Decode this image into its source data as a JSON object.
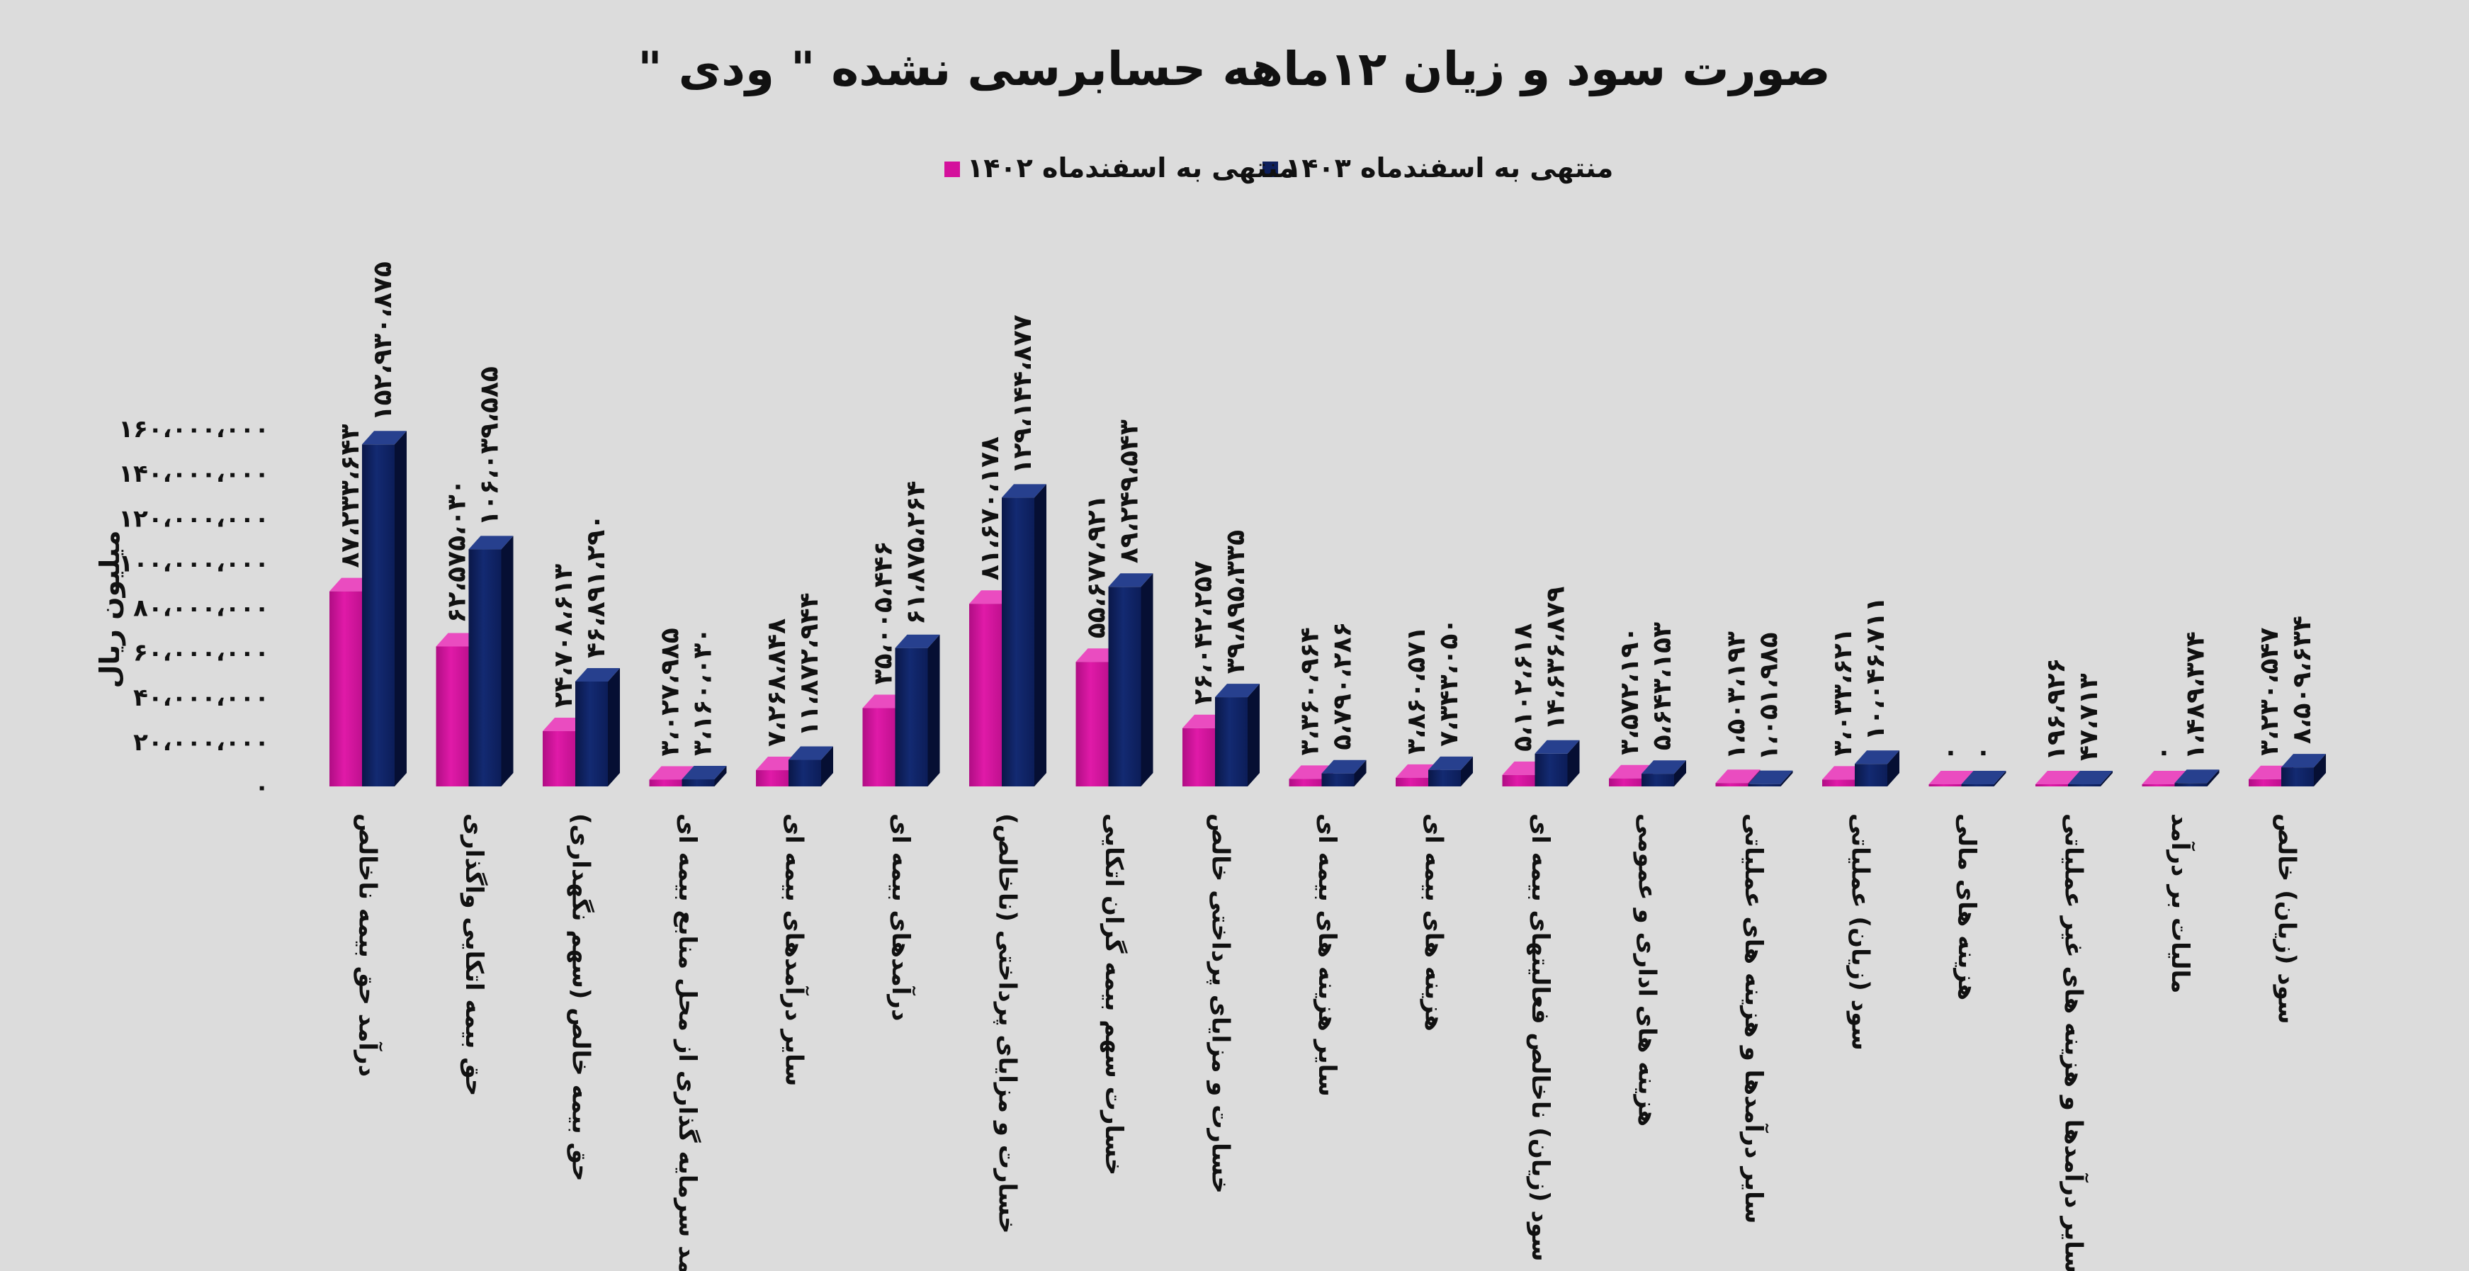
{
  "chart_data": {
    "type": "bar",
    "title": "صورت سود و زیان ۱۲ماهه حسابرسی نشده \" ودی \"",
    "ylabel": "میلیون ریال",
    "ylim": [
      0,
      160000000
    ],
    "yticks": [
      0,
      20000000,
      40000000,
      60000000,
      80000000,
      100000000,
      120000000,
      140000000,
      160000000
    ],
    "ytick_labels": [
      "۰",
      "۲۰،۰۰۰،۰۰۰",
      "۴۰،۰۰۰،۰۰۰",
      "۶۰،۰۰۰،۰۰۰",
      "۸۰،۰۰۰،۰۰۰",
      "۱۰۰،۰۰۰،۰۰۰",
      "۱۲۰،۰۰۰،۰۰۰",
      "۱۴۰،۰۰۰،۰۰۰",
      "۱۶۰،۰۰۰،۰۰۰"
    ],
    "grid": false,
    "legend_position": "top-center",
    "categories": [
      "درآمد حق بیمه ناخالص",
      "حق بیمه اتکایی واگذاری",
      "حق بیمه خالص (سهم نگهداری)",
      "درآمد سرمایه گذاری از محل منابع بیمه ای",
      "سایر درآمدهای بیمه ای",
      "درآمدهای بیمه ای",
      "خسارت و مزایای پرداختی (ناخالص)",
      "خسارت سهم بیمه گران اتکایی",
      "خسارت و مزایای پرداختی خالص",
      "سایر هزینه های بیمه ای",
      "هزینه های بیمه ای",
      "سود (زیان) ناخالص فعالیتهای بیمه ای",
      "هزینه های اداری و عمومی",
      "سایر درآمدها و هزینه های عملیاتی",
      "سود (زیان) عملیاتی",
      "هزینه های مالی",
      "سایر درآمدها و هزینه های غیر عملیاتی",
      "مالیات بر درآمد",
      "سود (زیان) خالص"
    ],
    "series": [
      {
        "name": "منتهی به اسفندماه ۱۴۰۲",
        "color": "#d4119c",
        "values": [
          87233643,
          62575030,
          24708613,
          3027985,
          7268848,
          35005446,
          81670178,
          55677921,
          26042257,
          3360964,
          3860571,
          5102618,
          3572190,
          1503193,
          3033621,
          0,
          196926,
          0,
          3230547
        ],
        "labels": [
          "۸۷،۲۳۳،۶۴۳",
          "۶۲،۵۷۵،۰۳۰",
          "۲۴،۷۰۸،۶۱۳",
          "۳،۰۲۷،۹۸۵",
          "۷،۲۶۸،۸۴۸",
          "۳۵،۰۰۵،۴۴۶",
          "۸۱،۶۷۰،۱۷۸",
          "۵۵،۶۷۷،۹۲۱",
          "۲۶،۰۴۲،۲۵۷",
          "۳،۳۶۰،۹۶۴",
          "۳،۸۶۰،۵۷۱",
          "۵،۱۰۲،۶۱۸",
          "۳،۵۷۲،۱۹۰",
          "۱،۵۰۳،۱۹۳",
          "۳،۰۳۳،۶۲۱",
          "۰",
          "۱۹۶،۹۲۶",
          "۰",
          "۳،۲۳۰،۵۴۷"
        ]
      },
      {
        "name": "منتهی به اسفندماه ۱۴۰۳",
        "color": "#0d1f5c",
        "values": [
          152930875,
          106039585,
          46891290,
          3160030,
          11872944,
          61875264,
          129144877,
          89249543,
          39895335,
          5790286,
          7343050,
          14636879,
          5643153,
          1051985,
          10046711,
          0,
          47713,
          1489374,
          8509634
        ],
        "labels": [
          "۱۵۲،۹۳۰،۸۷۵",
          "۱۰۶،۰۳۹،۵۸۵",
          "۴۶،۸۹۱،۲۹۰",
          "۳،۱۶۰،۰۳۰",
          "۱۱،۸۷۲،۹۴۴",
          "۶۱،۸۷۵،۲۶۴",
          "۱۲۹،۱۴۴،۸۷۷",
          "۸۹،۲۴۹،۵۴۳",
          "۳۹،۸۹۵،۳۳۵",
          "۵،۷۹۰،۲۸۶",
          "۷،۳۴۳،۰۵۰",
          "۱۴،۶۳۶،۸۷۹",
          "۵،۶۴۳،۱۵۳",
          "۱،۰۵۱،۹۸۵",
          "۱۰،۰۴۶،۷۱۱",
          "۰",
          "۴۷،۷۱۳",
          "۱،۴۸۹،۳۷۴",
          "۸،۵۰۹،۶۳۴"
        ]
      }
    ]
  }
}
